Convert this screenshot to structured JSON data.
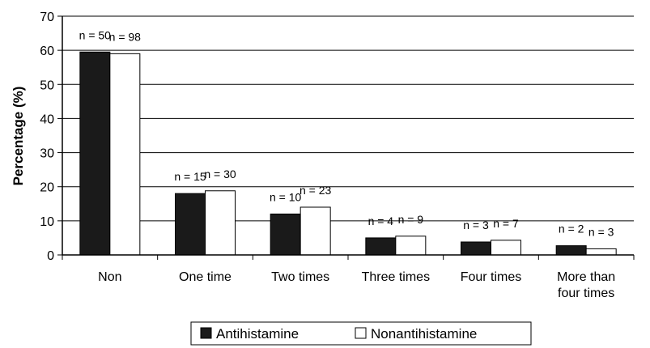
{
  "chart_data": {
    "type": "bar",
    "ylabel": "Percentage (%)",
    "ylim": [
      0,
      70
    ],
    "yticks": [
      "0",
      "10",
      "20",
      "30",
      "40",
      "50",
      "60",
      "70"
    ],
    "grid": true,
    "legend_position": "bottom",
    "categories": [
      "Non",
      "One time",
      "Two times",
      "Three times",
      "Four times",
      "More than four times"
    ],
    "category_lines": [
      [
        "Non"
      ],
      [
        "One time"
      ],
      [
        "Two times"
      ],
      [
        "Three times"
      ],
      [
        "Four times"
      ],
      [
        "More than",
        "four times"
      ]
    ],
    "series": [
      {
        "name": "Antihistamine",
        "color": "#1a1a1a",
        "values": [
          59.5,
          18,
          12,
          5,
          3.8,
          2.7
        ],
        "labels": [
          "n = 50",
          "n = 15",
          "n = 10",
          "n = 4",
          "n = 3",
          "n = 2"
        ]
      },
      {
        "name": "Nonantihistamine",
        "color": "#ffffff",
        "values": [
          59,
          18.8,
          14,
          5.5,
          4.3,
          1.8
        ],
        "labels": [
          "n = 98",
          "n = 30",
          "n = 23",
          "n = 9",
          "n = 7",
          "n = 3"
        ]
      }
    ]
  }
}
